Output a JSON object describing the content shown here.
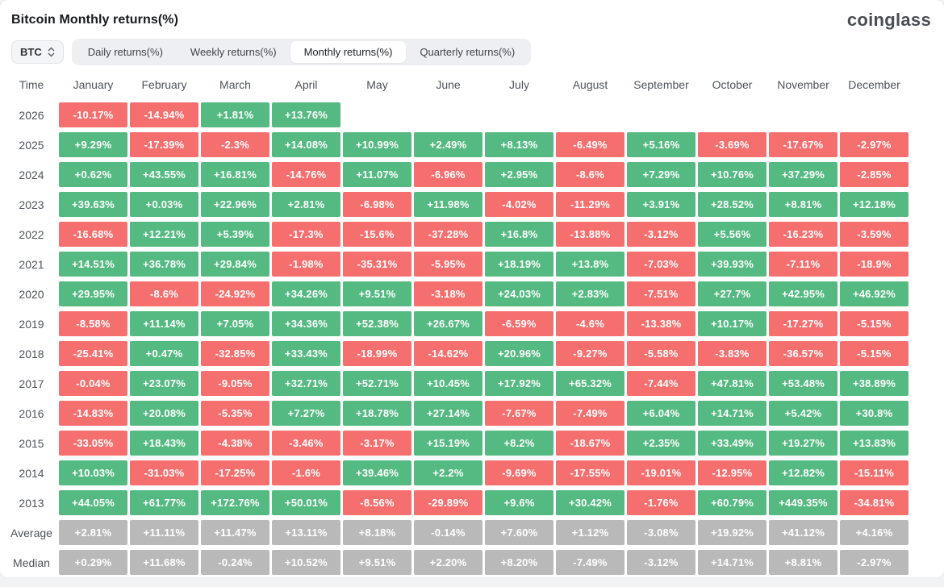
{
  "header": {
    "title": "Bitcoin Monthly returns(%)",
    "logo": "coinglass"
  },
  "controls": {
    "symbol_select": {
      "value": "BTC",
      "icon": "updown-chevron-icon"
    },
    "tabs": [
      {
        "label": "Daily returns(%)",
        "active": false
      },
      {
        "label": "Weekly returns(%)",
        "active": false
      },
      {
        "label": "Monthly returns(%)",
        "active": true
      },
      {
        "label": "Quarterly returns(%)",
        "active": false
      }
    ]
  },
  "colors": {
    "positive": "#55ba82",
    "negative": "#f56f6f",
    "neutral": "#b9b9b9"
  },
  "table": {
    "columns": [
      "Time",
      "January",
      "February",
      "March",
      "April",
      "May",
      "June",
      "July",
      "August",
      "September",
      "October",
      "November",
      "December"
    ],
    "rows": [
      {
        "label": "2026",
        "cells": [
          {
            "v": "-10.17%",
            "c": "neg"
          },
          {
            "v": "-14.94%",
            "c": "neg"
          },
          {
            "v": "+1.81%",
            "c": "pos"
          },
          {
            "v": "+13.76%",
            "c": "pos"
          },
          {
            "v": "",
            "c": "empty"
          },
          {
            "v": "",
            "c": "empty"
          },
          {
            "v": "",
            "c": "empty"
          },
          {
            "v": "",
            "c": "empty"
          },
          {
            "v": "",
            "c": "empty"
          },
          {
            "v": "",
            "c": "empty"
          },
          {
            "v": "",
            "c": "empty"
          },
          {
            "v": "",
            "c": "empty"
          }
        ]
      },
      {
        "label": "2025",
        "cells": [
          {
            "v": "+9.29%",
            "c": "pos"
          },
          {
            "v": "-17.39%",
            "c": "neg"
          },
          {
            "v": "-2.3%",
            "c": "neg"
          },
          {
            "v": "+14.08%",
            "c": "pos"
          },
          {
            "v": "+10.99%",
            "c": "pos"
          },
          {
            "v": "+2.49%",
            "c": "pos"
          },
          {
            "v": "+8.13%",
            "c": "pos"
          },
          {
            "v": "-6.49%",
            "c": "neg"
          },
          {
            "v": "+5.16%",
            "c": "pos"
          },
          {
            "v": "-3.69%",
            "c": "neg"
          },
          {
            "v": "-17.67%",
            "c": "neg"
          },
          {
            "v": "-2.97%",
            "c": "neg"
          }
        ]
      },
      {
        "label": "2024",
        "cells": [
          {
            "v": "+0.62%",
            "c": "pos"
          },
          {
            "v": "+43.55%",
            "c": "pos"
          },
          {
            "v": "+16.81%",
            "c": "pos"
          },
          {
            "v": "-14.76%",
            "c": "neg"
          },
          {
            "v": "+11.07%",
            "c": "pos"
          },
          {
            "v": "-6.96%",
            "c": "neg"
          },
          {
            "v": "+2.95%",
            "c": "pos"
          },
          {
            "v": "-8.6%",
            "c": "neg"
          },
          {
            "v": "+7.29%",
            "c": "pos"
          },
          {
            "v": "+10.76%",
            "c": "pos"
          },
          {
            "v": "+37.29%",
            "c": "pos"
          },
          {
            "v": "-2.85%",
            "c": "neg"
          }
        ]
      },
      {
        "label": "2023",
        "cells": [
          {
            "v": "+39.63%",
            "c": "pos"
          },
          {
            "v": "+0.03%",
            "c": "pos"
          },
          {
            "v": "+22.96%",
            "c": "pos"
          },
          {
            "v": "+2.81%",
            "c": "pos"
          },
          {
            "v": "-6.98%",
            "c": "neg"
          },
          {
            "v": "+11.98%",
            "c": "pos"
          },
          {
            "v": "-4.02%",
            "c": "neg"
          },
          {
            "v": "-11.29%",
            "c": "neg"
          },
          {
            "v": "+3.91%",
            "c": "pos"
          },
          {
            "v": "+28.52%",
            "c": "pos"
          },
          {
            "v": "+8.81%",
            "c": "pos"
          },
          {
            "v": "+12.18%",
            "c": "pos"
          }
        ]
      },
      {
        "label": "2022",
        "cells": [
          {
            "v": "-16.68%",
            "c": "neg"
          },
          {
            "v": "+12.21%",
            "c": "pos"
          },
          {
            "v": "+5.39%",
            "c": "pos"
          },
          {
            "v": "-17.3%",
            "c": "neg"
          },
          {
            "v": "-15.6%",
            "c": "neg"
          },
          {
            "v": "-37.28%",
            "c": "neg"
          },
          {
            "v": "+16.8%",
            "c": "pos"
          },
          {
            "v": "-13.88%",
            "c": "neg"
          },
          {
            "v": "-3.12%",
            "c": "neg"
          },
          {
            "v": "+5.56%",
            "c": "pos"
          },
          {
            "v": "-16.23%",
            "c": "neg"
          },
          {
            "v": "-3.59%",
            "c": "neg"
          }
        ]
      },
      {
        "label": "2021",
        "cells": [
          {
            "v": "+14.51%",
            "c": "pos"
          },
          {
            "v": "+36.78%",
            "c": "pos"
          },
          {
            "v": "+29.84%",
            "c": "pos"
          },
          {
            "v": "-1.98%",
            "c": "neg"
          },
          {
            "v": "-35.31%",
            "c": "neg"
          },
          {
            "v": "-5.95%",
            "c": "neg"
          },
          {
            "v": "+18.19%",
            "c": "pos"
          },
          {
            "v": "+13.8%",
            "c": "pos"
          },
          {
            "v": "-7.03%",
            "c": "neg"
          },
          {
            "v": "+39.93%",
            "c": "pos"
          },
          {
            "v": "-7.11%",
            "c": "neg"
          },
          {
            "v": "-18.9%",
            "c": "neg"
          }
        ]
      },
      {
        "label": "2020",
        "cells": [
          {
            "v": "+29.95%",
            "c": "pos"
          },
          {
            "v": "-8.6%",
            "c": "neg"
          },
          {
            "v": "-24.92%",
            "c": "neg"
          },
          {
            "v": "+34.26%",
            "c": "pos"
          },
          {
            "v": "+9.51%",
            "c": "pos"
          },
          {
            "v": "-3.18%",
            "c": "neg"
          },
          {
            "v": "+24.03%",
            "c": "pos"
          },
          {
            "v": "+2.83%",
            "c": "pos"
          },
          {
            "v": "-7.51%",
            "c": "neg"
          },
          {
            "v": "+27.7%",
            "c": "pos"
          },
          {
            "v": "+42.95%",
            "c": "pos"
          },
          {
            "v": "+46.92%",
            "c": "pos"
          }
        ]
      },
      {
        "label": "2019",
        "cells": [
          {
            "v": "-8.58%",
            "c": "neg"
          },
          {
            "v": "+11.14%",
            "c": "pos"
          },
          {
            "v": "+7.05%",
            "c": "pos"
          },
          {
            "v": "+34.36%",
            "c": "pos"
          },
          {
            "v": "+52.38%",
            "c": "pos"
          },
          {
            "v": "+26.67%",
            "c": "pos"
          },
          {
            "v": "-6.59%",
            "c": "neg"
          },
          {
            "v": "-4.6%",
            "c": "neg"
          },
          {
            "v": "-13.38%",
            "c": "neg"
          },
          {
            "v": "+10.17%",
            "c": "pos"
          },
          {
            "v": "-17.27%",
            "c": "neg"
          },
          {
            "v": "-5.15%",
            "c": "neg"
          }
        ]
      },
      {
        "label": "2018",
        "cells": [
          {
            "v": "-25.41%",
            "c": "neg"
          },
          {
            "v": "+0.47%",
            "c": "pos"
          },
          {
            "v": "-32.85%",
            "c": "neg"
          },
          {
            "v": "+33.43%",
            "c": "pos"
          },
          {
            "v": "-18.99%",
            "c": "neg"
          },
          {
            "v": "-14.62%",
            "c": "neg"
          },
          {
            "v": "+20.96%",
            "c": "pos"
          },
          {
            "v": "-9.27%",
            "c": "neg"
          },
          {
            "v": "-5.58%",
            "c": "neg"
          },
          {
            "v": "-3.83%",
            "c": "neg"
          },
          {
            "v": "-36.57%",
            "c": "neg"
          },
          {
            "v": "-5.15%",
            "c": "neg"
          }
        ]
      },
      {
        "label": "2017",
        "cells": [
          {
            "v": "-0.04%",
            "c": "neg"
          },
          {
            "v": "+23.07%",
            "c": "pos"
          },
          {
            "v": "-9.05%",
            "c": "neg"
          },
          {
            "v": "+32.71%",
            "c": "pos"
          },
          {
            "v": "+52.71%",
            "c": "pos"
          },
          {
            "v": "+10.45%",
            "c": "pos"
          },
          {
            "v": "+17.92%",
            "c": "pos"
          },
          {
            "v": "+65.32%",
            "c": "pos"
          },
          {
            "v": "-7.44%",
            "c": "neg"
          },
          {
            "v": "+47.81%",
            "c": "pos"
          },
          {
            "v": "+53.48%",
            "c": "pos"
          },
          {
            "v": "+38.89%",
            "c": "pos"
          }
        ]
      },
      {
        "label": "2016",
        "cells": [
          {
            "v": "-14.83%",
            "c": "neg"
          },
          {
            "v": "+20.08%",
            "c": "pos"
          },
          {
            "v": "-5.35%",
            "c": "neg"
          },
          {
            "v": "+7.27%",
            "c": "pos"
          },
          {
            "v": "+18.78%",
            "c": "pos"
          },
          {
            "v": "+27.14%",
            "c": "pos"
          },
          {
            "v": "-7.67%",
            "c": "neg"
          },
          {
            "v": "-7.49%",
            "c": "neg"
          },
          {
            "v": "+6.04%",
            "c": "pos"
          },
          {
            "v": "+14.71%",
            "c": "pos"
          },
          {
            "v": "+5.42%",
            "c": "pos"
          },
          {
            "v": "+30.8%",
            "c": "pos"
          }
        ]
      },
      {
        "label": "2015",
        "cells": [
          {
            "v": "-33.05%",
            "c": "neg"
          },
          {
            "v": "+18.43%",
            "c": "pos"
          },
          {
            "v": "-4.38%",
            "c": "neg"
          },
          {
            "v": "-3.46%",
            "c": "neg"
          },
          {
            "v": "-3.17%",
            "c": "neg"
          },
          {
            "v": "+15.19%",
            "c": "pos"
          },
          {
            "v": "+8.2%",
            "c": "pos"
          },
          {
            "v": "-18.67%",
            "c": "neg"
          },
          {
            "v": "+2.35%",
            "c": "pos"
          },
          {
            "v": "+33.49%",
            "c": "pos"
          },
          {
            "v": "+19.27%",
            "c": "pos"
          },
          {
            "v": "+13.83%",
            "c": "pos"
          }
        ]
      },
      {
        "label": "2014",
        "cells": [
          {
            "v": "+10.03%",
            "c": "pos"
          },
          {
            "v": "-31.03%",
            "c": "neg"
          },
          {
            "v": "-17.25%",
            "c": "neg"
          },
          {
            "v": "-1.6%",
            "c": "neg"
          },
          {
            "v": "+39.46%",
            "c": "pos"
          },
          {
            "v": "+2.2%",
            "c": "pos"
          },
          {
            "v": "-9.69%",
            "c": "neg"
          },
          {
            "v": "-17.55%",
            "c": "neg"
          },
          {
            "v": "-19.01%",
            "c": "neg"
          },
          {
            "v": "-12.95%",
            "c": "neg"
          },
          {
            "v": "+12.82%",
            "c": "pos"
          },
          {
            "v": "-15.11%",
            "c": "neg"
          }
        ]
      },
      {
        "label": "2013",
        "cells": [
          {
            "v": "+44.05%",
            "c": "pos"
          },
          {
            "v": "+61.77%",
            "c": "pos"
          },
          {
            "v": "+172.76%",
            "c": "pos"
          },
          {
            "v": "+50.01%",
            "c": "pos"
          },
          {
            "v": "-8.56%",
            "c": "neg"
          },
          {
            "v": "-29.89%",
            "c": "neg"
          },
          {
            "v": "+9.6%",
            "c": "pos"
          },
          {
            "v": "+30.42%",
            "c": "pos"
          },
          {
            "v": "-1.76%",
            "c": "neg"
          },
          {
            "v": "+60.79%",
            "c": "pos"
          },
          {
            "v": "+449.35%",
            "c": "pos"
          },
          {
            "v": "-34.81%",
            "c": "neg"
          }
        ]
      },
      {
        "label": "Average",
        "cells": [
          {
            "v": "+2.81%",
            "c": "stat"
          },
          {
            "v": "+11.11%",
            "c": "stat"
          },
          {
            "v": "+11.47%",
            "c": "stat"
          },
          {
            "v": "+13.11%",
            "c": "stat"
          },
          {
            "v": "+8.18%",
            "c": "stat"
          },
          {
            "v": "-0.14%",
            "c": "stat"
          },
          {
            "v": "+7.60%",
            "c": "stat"
          },
          {
            "v": "+1.12%",
            "c": "stat"
          },
          {
            "v": "-3.08%",
            "c": "stat"
          },
          {
            "v": "+19.92%",
            "c": "stat"
          },
          {
            "v": "+41.12%",
            "c": "stat"
          },
          {
            "v": "+4.16%",
            "c": "stat"
          }
        ]
      },
      {
        "label": "Median",
        "cells": [
          {
            "v": "+0.29%",
            "c": "stat"
          },
          {
            "v": "+11.68%",
            "c": "stat"
          },
          {
            "v": "-0.24%",
            "c": "stat"
          },
          {
            "v": "+10.52%",
            "c": "stat"
          },
          {
            "v": "+9.51%",
            "c": "stat"
          },
          {
            "v": "+2.20%",
            "c": "stat"
          },
          {
            "v": "+8.20%",
            "c": "stat"
          },
          {
            "v": "-7.49%",
            "c": "stat"
          },
          {
            "v": "-3.12%",
            "c": "stat"
          },
          {
            "v": "+14.71%",
            "c": "stat"
          },
          {
            "v": "+8.81%",
            "c": "stat"
          },
          {
            "v": "-2.97%",
            "c": "stat"
          }
        ]
      }
    ]
  }
}
